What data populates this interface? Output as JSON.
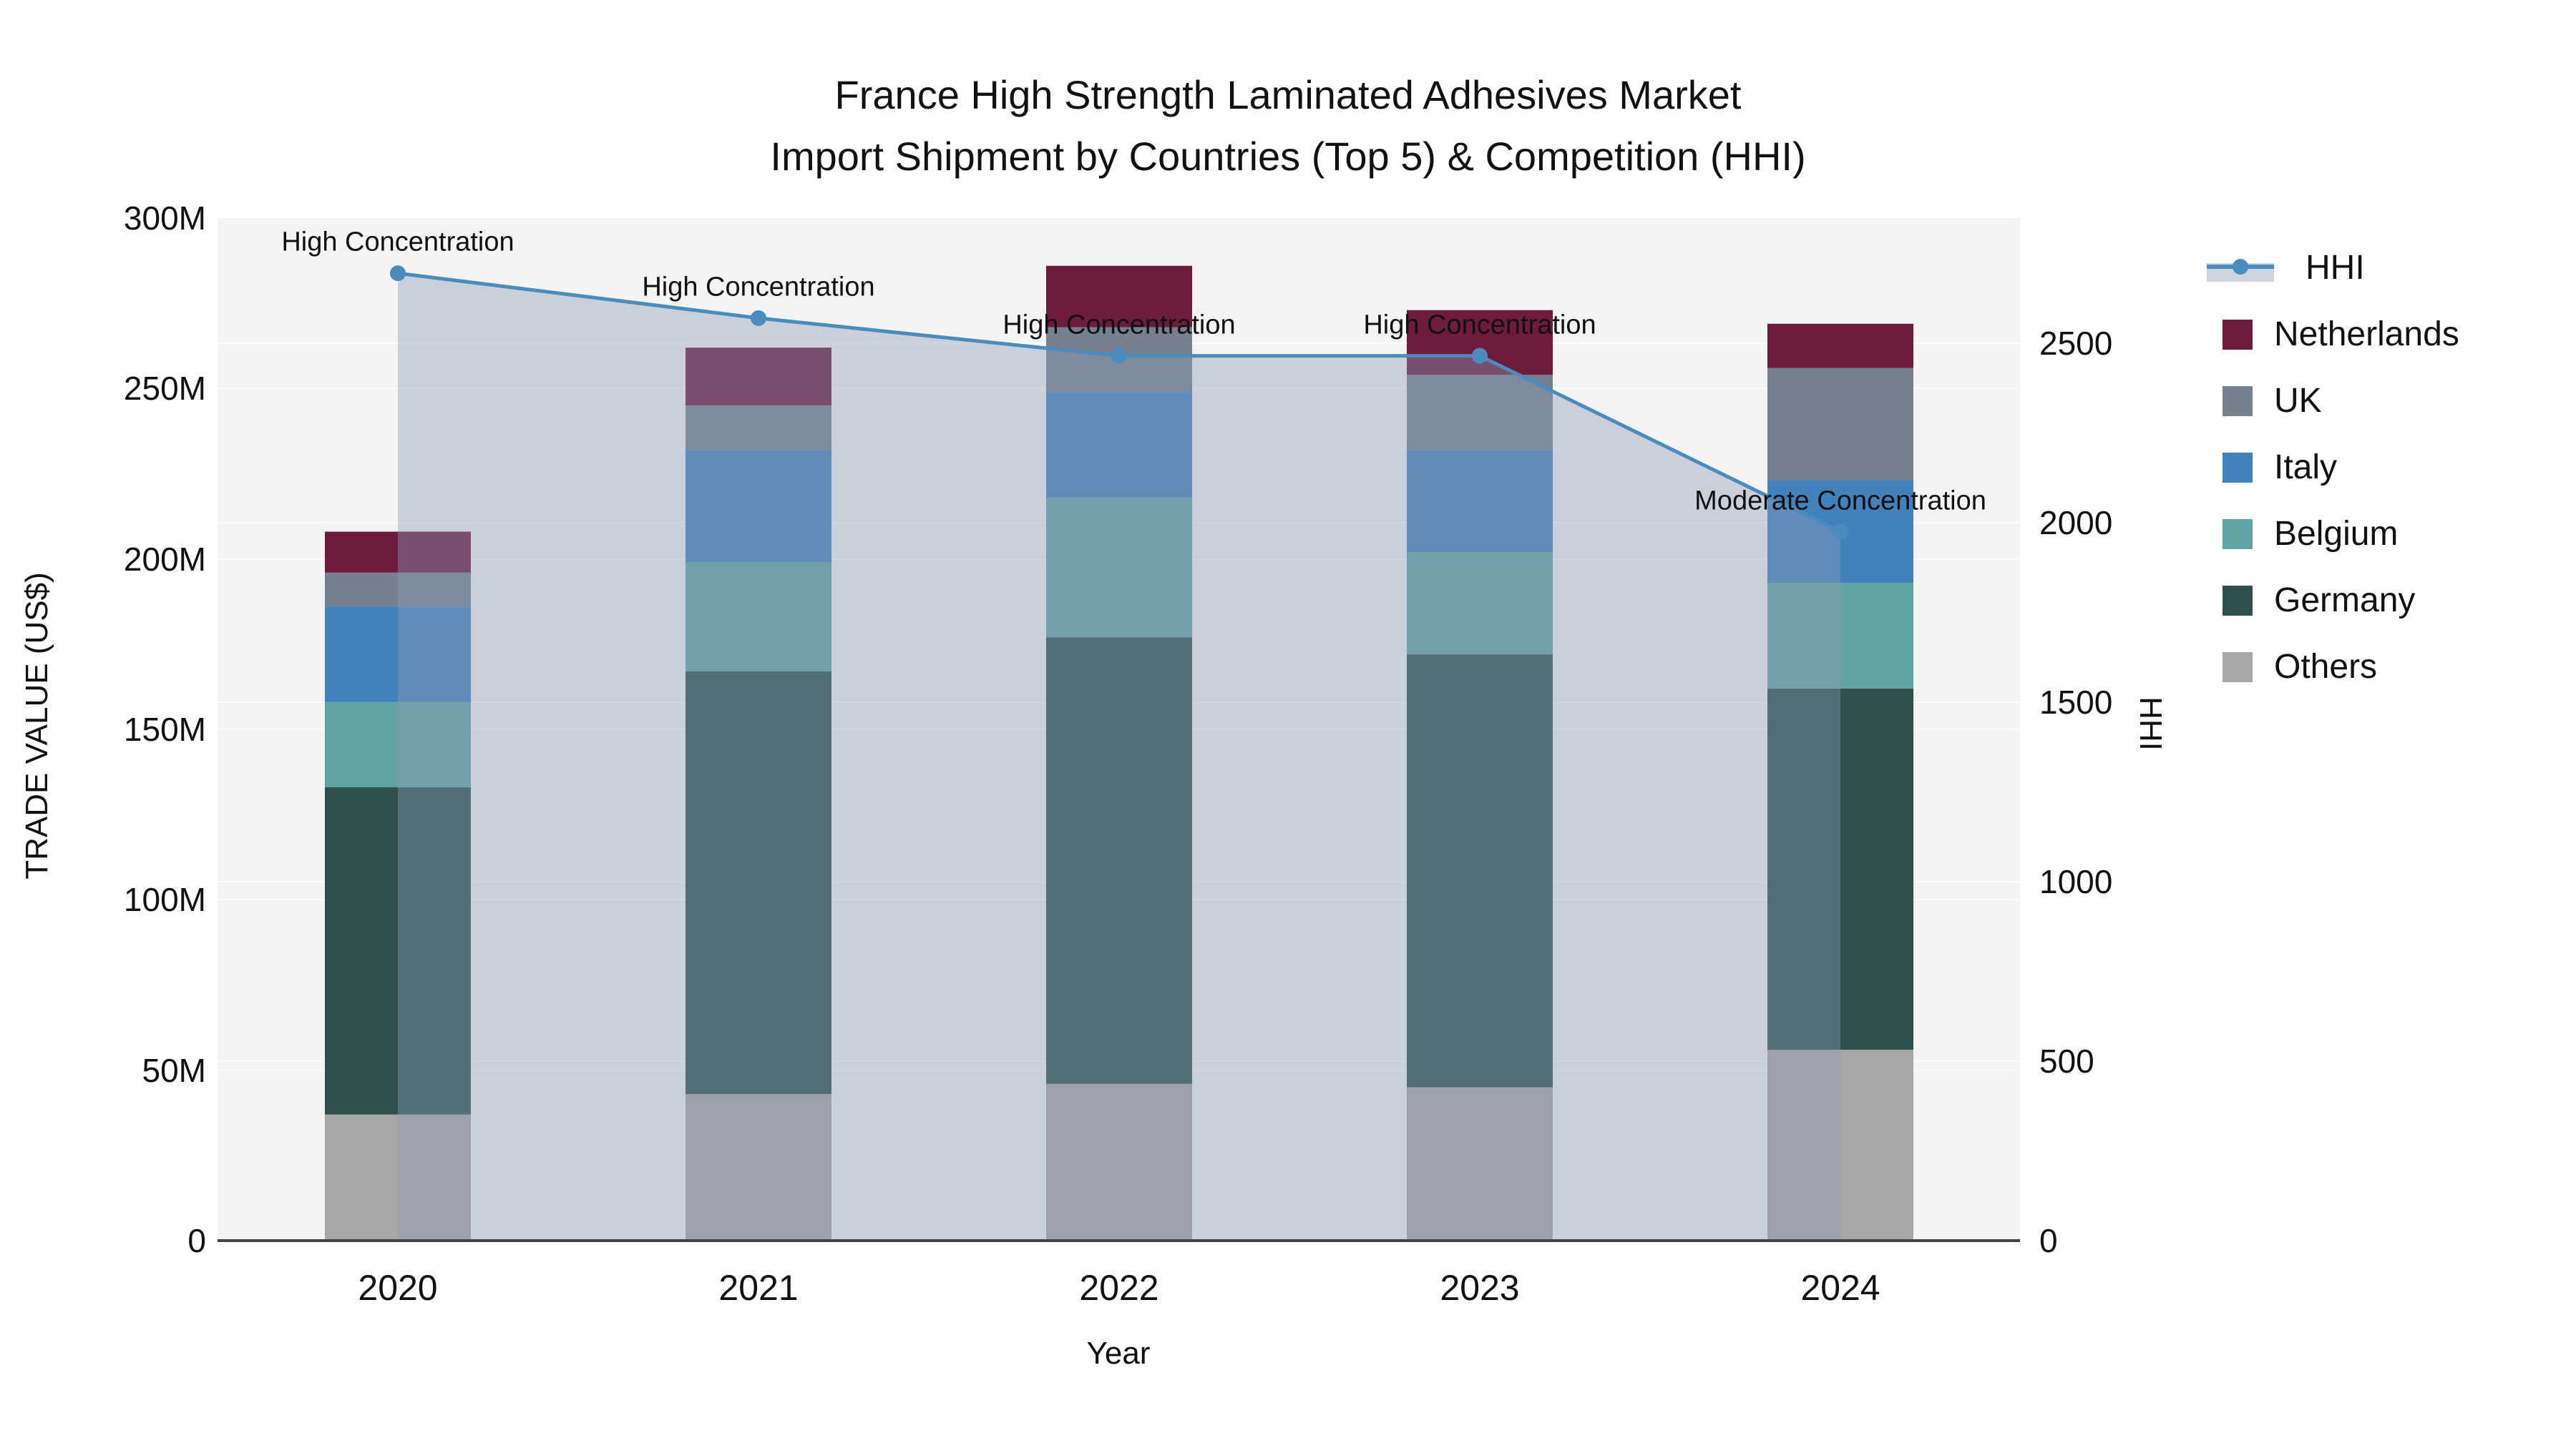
{
  "title": {
    "line1": "France High Strength Laminated Adhesives Market",
    "line2": "Import Shipment by Countries (Top 5) & Competition (HHI)"
  },
  "axes": {
    "y_left": {
      "title": "TRADE VALUE (US$)",
      "tick_labels": [
        "0",
        "50M",
        "100M",
        "150M",
        "200M",
        "250M",
        "300M"
      ],
      "tick_values": [
        0,
        50,
        100,
        150,
        200,
        250,
        300
      ]
    },
    "y_right": {
      "title": "HHI",
      "tick_labels": [
        "0",
        "500",
        "1000",
        "1500",
        "2000",
        "2500"
      ],
      "tick_values": [
        0,
        500,
        1000,
        1500,
        2000,
        2500
      ]
    },
    "x": {
      "title": "Year",
      "categories": [
        "2020",
        "2021",
        "2022",
        "2023",
        "2024"
      ]
    }
  },
  "colors": {
    "plot_bg": "#f3f4f3",
    "gridline": "rgba(255,255,255,0.75)",
    "baseline": "#444444",
    "hhi_line": "#4a8bc0",
    "hhi_fill": "rgba(140,155,180,0.40)",
    "legend_band": "#cdd4df",
    "netherlands": "#6e1b3d",
    "uk": "#75818e",
    "italy": "#4282bc",
    "belgium": "#61a3a2",
    "germany": "#2f504c",
    "others": "#a9a6a6"
  },
  "legend": [
    {
      "label": "HHI",
      "type": "line",
      "color_key": "hhi_line"
    },
    {
      "label": "Netherlands",
      "type": "swatch",
      "color_key": "netherlands"
    },
    {
      "label": "UK",
      "type": "swatch",
      "color_key": "uk"
    },
    {
      "label": "Italy",
      "type": "swatch",
      "color_key": "italy"
    },
    {
      "label": "Belgium",
      "type": "swatch",
      "color_key": "belgium"
    },
    {
      "label": "Germany",
      "type": "swatch",
      "color_key": "germany"
    },
    {
      "label": "Others",
      "type": "swatch",
      "color_key": "others"
    }
  ],
  "chart_data": {
    "type": "bar+line",
    "title": "France High Strength Laminated Adhesives Market — Import Shipment by Countries (Top 5) & Competition (HHI)",
    "categories": [
      "2020",
      "2021",
      "2022",
      "2023",
      "2024"
    ],
    "bar_value_unit": "Million US$",
    "stack_order_bottom_to_top": [
      "Others",
      "Germany",
      "Belgium",
      "Italy",
      "UK",
      "Netherlands"
    ],
    "series": [
      {
        "name": "Netherlands",
        "color_key": "netherlands",
        "values": [
          12,
          17,
          18,
          19,
          13
        ]
      },
      {
        "name": "UK",
        "color_key": "uk",
        "values": [
          10,
          13,
          19,
          22,
          33
        ]
      },
      {
        "name": "Italy",
        "color_key": "italy",
        "values": [
          28,
          33,
          31,
          30,
          30
        ]
      },
      {
        "name": "Belgium",
        "color_key": "belgium",
        "values": [
          25,
          32,
          41,
          30,
          31
        ]
      },
      {
        "name": "Germany",
        "color_key": "germany",
        "values": [
          96,
          124,
          131,
          127,
          106
        ]
      },
      {
        "name": "Others",
        "color_key": "others",
        "values": [
          37,
          43,
          46,
          45,
          56
        ]
      }
    ],
    "stack_totals": [
      208,
      262,
      286,
      273,
      269
    ],
    "line_series": {
      "name": "HHI",
      "axis": "right",
      "values": [
        2695,
        2570,
        2465,
        2465,
        1975
      ],
      "marker": "circle",
      "area_fill": true
    },
    "xlabel": "Year",
    "ylabel_left": "TRADE VALUE (US$)",
    "ylabel_right": "HHI",
    "ylim_left": [
      0,
      300
    ],
    "ylim_right": [
      0,
      2849
    ],
    "grid": "on",
    "legend_position": "right",
    "annotations": [
      {
        "category": "2020",
        "text": "High Concentration"
      },
      {
        "category": "2021",
        "text": "High Concentration"
      },
      {
        "category": "2022",
        "text": "High Concentration"
      },
      {
        "category": "2023",
        "text": "High Concentration"
      },
      {
        "category": "2024",
        "text": "Moderate Concentration"
      }
    ]
  }
}
